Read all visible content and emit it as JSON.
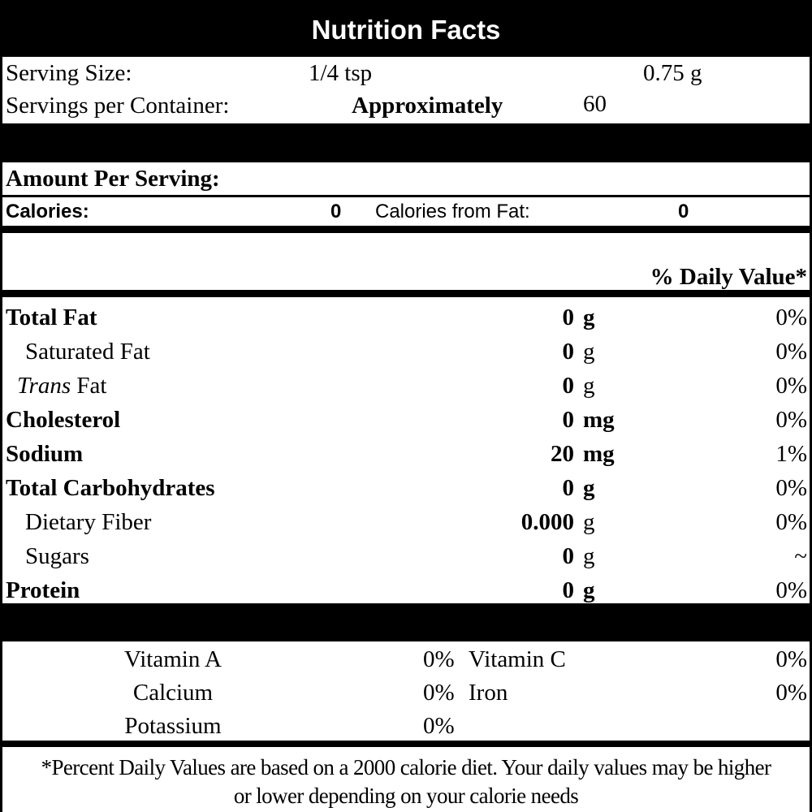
{
  "title": "Nutrition Facts",
  "serving": {
    "size_label": "Serving Size:",
    "size_household": "1/4 tsp",
    "size_metric": "0.75 g",
    "per_container_label": "Servings per Container:",
    "per_container_qualifier": "Approximately",
    "per_container_value": "60"
  },
  "amount_per_serving": "Amount Per Serving:",
  "calories": {
    "label": "Calories:",
    "value": "0",
    "from_fat_label": "Calories from Fat:",
    "from_fat_value": "0"
  },
  "daily_value_header": "% Daily Value*",
  "nutrients": [
    {
      "name": "Total Fat",
      "amount": "0",
      "unit": "g",
      "dv": "0%",
      "bold": true,
      "indent": false
    },
    {
      "name": "Saturated Fat",
      "amount": "0",
      "unit": "g",
      "dv": "0%",
      "bold": false,
      "indent": true
    },
    {
      "name_italic": "Trans",
      "name": "Fat",
      "amount": "0",
      "unit": "g",
      "dv": "0%",
      "bold": false,
      "indent": true
    },
    {
      "name": "Cholesterol",
      "amount": "0",
      "unit": "mg",
      "dv": "0%",
      "bold": true,
      "indent": false
    },
    {
      "name": "Sodium",
      "amount": "20",
      "unit": "mg",
      "dv": "1%",
      "bold": true,
      "indent": false
    },
    {
      "name": "Total Carbohydrates",
      "amount": "0",
      "unit": "g",
      "dv": "0%",
      "bold": true,
      "indent": false
    },
    {
      "name": "Dietary Fiber",
      "amount": "0.000",
      "unit": "g",
      "dv": "0%",
      "bold": false,
      "indent": true
    },
    {
      "name": "Sugars",
      "amount": "0",
      "unit": "g",
      "dv": "~",
      "bold": false,
      "indent": true
    },
    {
      "name": "Protein",
      "amount": "0",
      "unit": "g",
      "dv": "0%",
      "bold": true,
      "indent": false
    }
  ],
  "vitamins": [
    {
      "name": "Vitamin A",
      "dv": "0%",
      "name2": "Vitamin C",
      "dv2": "0%"
    },
    {
      "name": "Calcium",
      "dv": "0%",
      "name2": "Iron",
      "dv2": "0%"
    },
    {
      "name": "Potassium",
      "dv": "0%"
    }
  ],
  "footnote": {
    "line1": "*Percent Daily Values are based on a 2000 calorie diet. Your daily values may be higher",
    "line2": "or lower depending on your calorie needs"
  }
}
